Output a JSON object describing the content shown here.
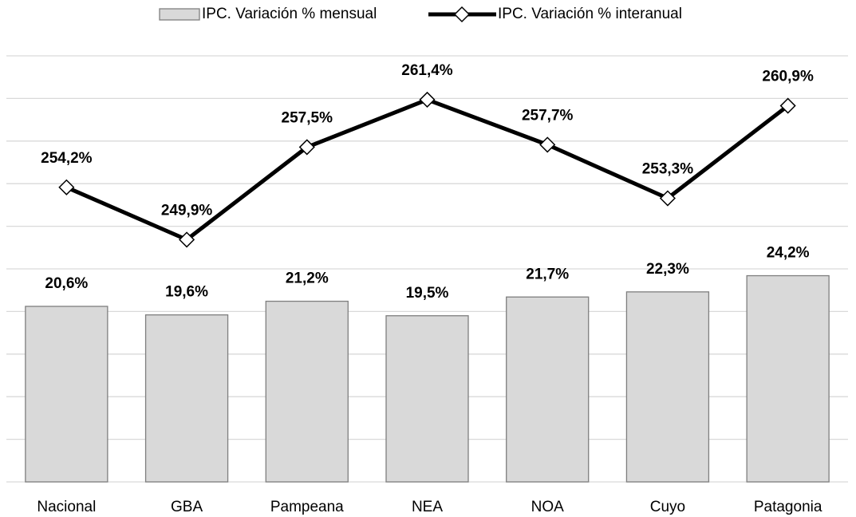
{
  "chart_data": {
    "type": "bar",
    "categories": [
      "Nacional",
      "GBA",
      "Pampeana",
      "NEA",
      "NOA",
      "Cuyo",
      "Patagonia"
    ],
    "series": [
      {
        "name": "IPC. Variación % mensual",
        "type": "bar",
        "color": "#d9d9d9",
        "values": [
          20.6,
          19.6,
          21.2,
          19.5,
          21.7,
          22.3,
          24.2
        ],
        "value_labels": [
          "20,6%",
          "19,6%",
          "21,2%",
          "19,5%",
          "21,7%",
          "22,3%",
          "24,2%"
        ]
      },
      {
        "name": "IPC. Variación % interanual",
        "type": "line",
        "color": "#000000",
        "axis": "y2",
        "values": [
          254.2,
          249.9,
          257.5,
          261.4,
          257.7,
          253.3,
          260.9
        ],
        "value_labels": [
          "254,2%",
          "249,9%",
          "257,5%",
          "261,4%",
          "257,7%",
          "253,3%",
          "260,9%"
        ]
      }
    ],
    "ylim": [
      0,
      50
    ],
    "yticks": [
      0,
      5,
      10,
      15,
      20,
      25,
      30,
      35,
      40,
      45,
      50
    ],
    "y2lim": [
      230,
      265
    ],
    "grid": true,
    "legend": "top"
  }
}
